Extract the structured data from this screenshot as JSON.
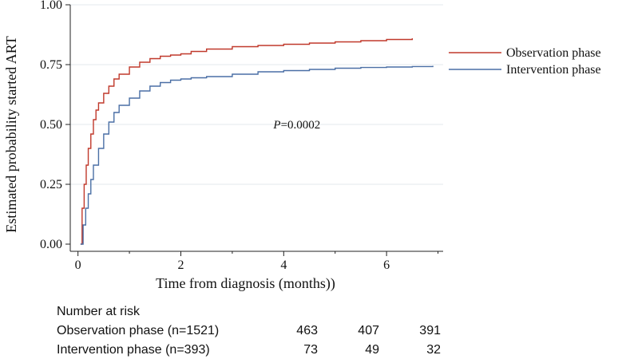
{
  "chart_data": {
    "type": "line",
    "step": true,
    "xlabel": "Time from diagnosis (months))",
    "ylabel": "Estimated probability started ART",
    "xlim": [
      -0.15,
      7.1
    ],
    "ylim": [
      -0.03,
      1.0
    ],
    "xticks": [
      0,
      2,
      4,
      6
    ],
    "yticks": [
      0.0,
      0.25,
      0.5,
      0.75,
      1.0
    ],
    "ytick_labels": [
      "0.00",
      "0.25",
      "0.50",
      "0.75",
      "1.00"
    ],
    "grid": "horizontal",
    "legend": "right",
    "annotation": {
      "prefix": "P",
      "text": "=0.0002",
      "x": 3.8,
      "y": 0.5
    },
    "series": [
      {
        "name": "Observation phase",
        "color": "#c0392b",
        "x": [
          0.05,
          0.08,
          0.12,
          0.16,
          0.2,
          0.25,
          0.3,
          0.35,
          0.4,
          0.5,
          0.6,
          0.7,
          0.8,
          1.0,
          1.2,
          1.4,
          1.6,
          1.8,
          2.0,
          2.2,
          2.5,
          3.0,
          3.5,
          4.0,
          4.5,
          5.0,
          5.5,
          6.0,
          6.5
        ],
        "y": [
          0.0,
          0.15,
          0.25,
          0.33,
          0.4,
          0.46,
          0.52,
          0.56,
          0.59,
          0.63,
          0.66,
          0.69,
          0.71,
          0.74,
          0.76,
          0.775,
          0.785,
          0.79,
          0.795,
          0.805,
          0.815,
          0.825,
          0.83,
          0.835,
          0.84,
          0.845,
          0.85,
          0.855,
          0.86
        ]
      },
      {
        "name": "Intervention phase",
        "color": "#4a6fa5",
        "x": [
          0.05,
          0.1,
          0.15,
          0.2,
          0.25,
          0.3,
          0.4,
          0.5,
          0.6,
          0.7,
          0.8,
          1.0,
          1.2,
          1.4,
          1.6,
          1.8,
          2.0,
          2.2,
          2.5,
          3.0,
          3.5,
          4.0,
          4.5,
          5.0,
          5.5,
          6.0,
          6.5,
          6.9
        ],
        "y": [
          0.0,
          0.08,
          0.15,
          0.21,
          0.27,
          0.33,
          0.4,
          0.46,
          0.51,
          0.55,
          0.58,
          0.61,
          0.64,
          0.66,
          0.675,
          0.685,
          0.69,
          0.695,
          0.7,
          0.71,
          0.72,
          0.725,
          0.73,
          0.735,
          0.738,
          0.74,
          0.742,
          0.745
        ]
      }
    ]
  },
  "risk_table": {
    "title": "Number at risk",
    "rows": [
      {
        "label": "Observation phase (n=1521)",
        "values": [
          "463",
          "407",
          "391"
        ]
      },
      {
        "label": "Intervention phase (n=393)",
        "values": [
          "73",
          "49",
          "32"
        ]
      }
    ]
  }
}
